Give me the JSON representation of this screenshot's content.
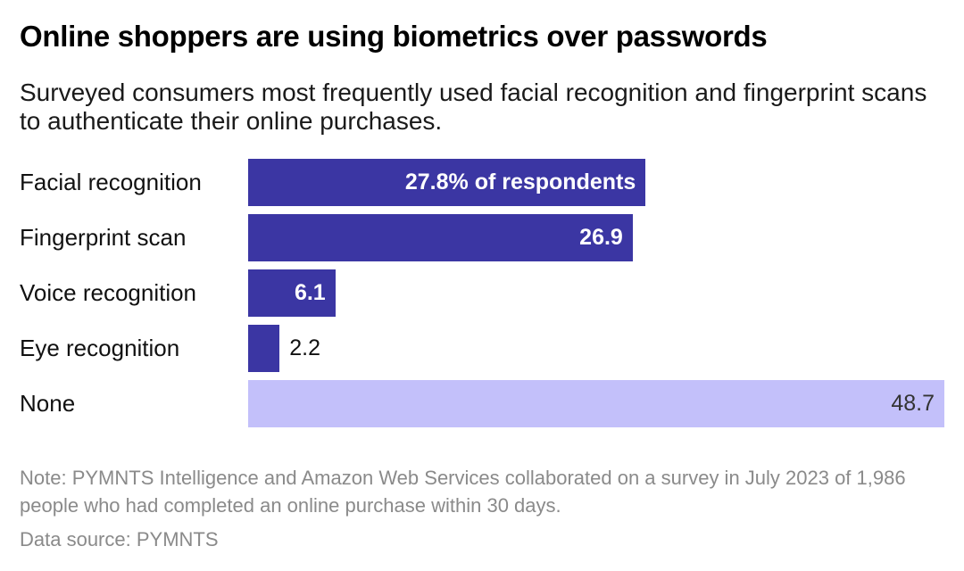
{
  "chart_data": {
    "type": "bar",
    "orientation": "horizontal",
    "title": "Online shoppers are using biometrics over passwords",
    "subtitle": "Surveyed consumers most frequently used facial recognition and fingerprint scans to authenticate their online purchases.",
    "categories": [
      "Facial recognition",
      "Fingerprint scan",
      "Voice recognition",
      "Eye recognition",
      "None"
    ],
    "values": [
      27.8,
      26.9,
      6.1,
      2.2,
      48.7
    ],
    "data_labels": [
      "27.8% of respondents",
      "26.9",
      "6.1",
      "2.2",
      "48.7"
    ],
    "colors": [
      "#3b36a3",
      "#3b36a3",
      "#3b36a3",
      "#3b36a3",
      "#c3c0fa"
    ],
    "xlim": [
      0,
      48.7
    ],
    "xlabel": "",
    "ylabel": "",
    "grid": false,
    "note": "Note: PYMNTS Intelligence and Amazon Web Services collaborated on a survey in July 2023 of 1,986 people who had completed an online purchase within 30 days.",
    "source": "Data source: PYMNTS"
  }
}
